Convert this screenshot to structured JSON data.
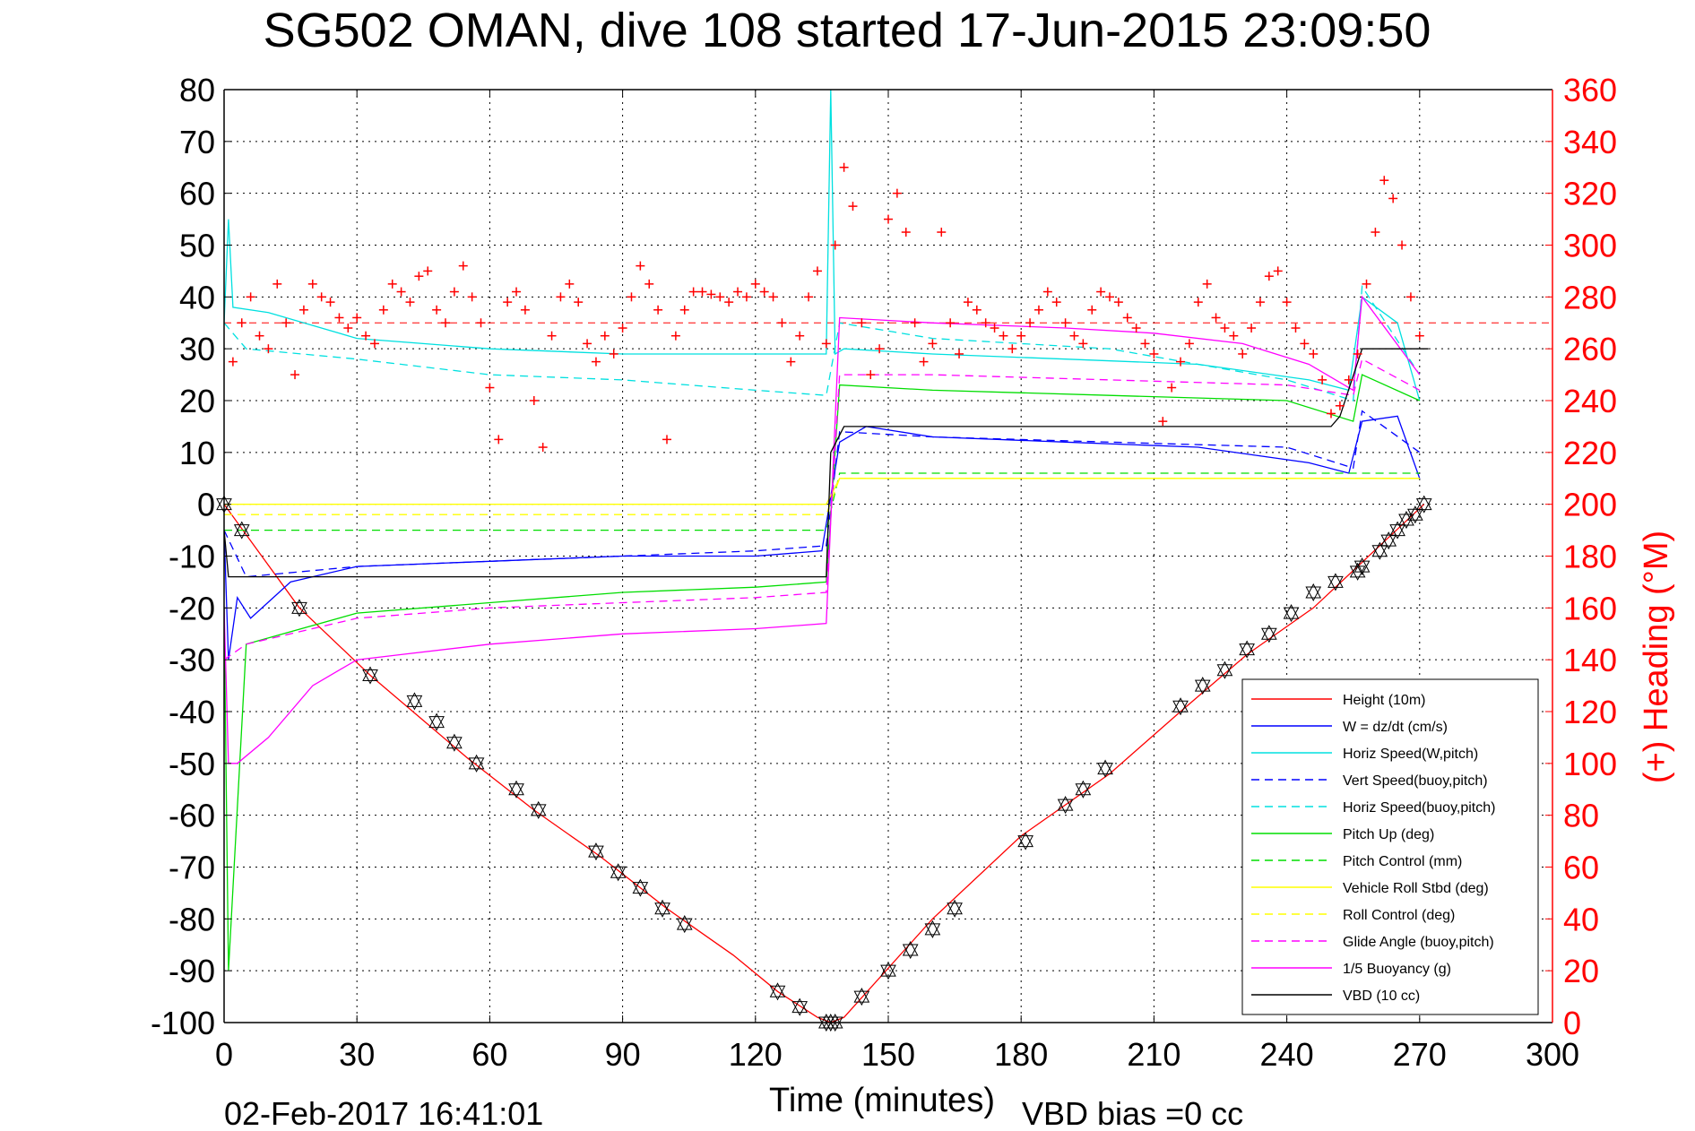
{
  "chart_data": {
    "type": "line",
    "title": "SG502 OMAN, dive 108 started 17-Jun-2015 23:09:50",
    "xlabel": "Time (minutes)",
    "ylabel_right": "(+) Heading (°M)",
    "footer_date": "02-Feb-2017 16:41:01",
    "footer_note": "VBD bias =0 cc",
    "xlim": [
      0,
      300
    ],
    "ylim": [
      -100,
      80
    ],
    "ylim_right": [
      0,
      360
    ],
    "x_ticks": [
      "0",
      "30",
      "60",
      "90",
      "120",
      "150",
      "180",
      "210",
      "240",
      "270",
      "300"
    ],
    "y_ticks": [
      "80",
      "70",
      "60",
      "50",
      "40",
      "30",
      "20",
      "10",
      "0",
      "-10",
      "-20",
      "-30",
      "-40",
      "-50",
      "-60",
      "-70",
      "-80",
      "-90",
      "-100"
    ],
    "y_ticks_right": [
      "360",
      "340",
      "320",
      "300",
      "280",
      "260",
      "240",
      "220",
      "200",
      "180",
      "160",
      "140",
      "120",
      "100",
      "80",
      "60",
      "40",
      "20",
      "0"
    ],
    "grid": true,
    "legend_position": "bottom-right",
    "series": [
      {
        "name": "Height (10m)",
        "color": "#ff0000",
        "dash": "solid",
        "x": [
          0,
          17,
          33,
          44,
          55,
          70,
          85,
          100,
          115,
          125,
          134,
          137,
          140,
          160,
          180,
          200,
          216,
          231,
          246,
          256,
          266,
          271
        ],
        "y": [
          0,
          -20,
          -33,
          -41,
          -49,
          -59,
          -68,
          -78,
          -87,
          -94,
          -99,
          -100,
          -99,
          -80,
          -64,
          -52,
          -40,
          -29,
          -20,
          -12,
          -4,
          0
        ]
      },
      {
        "name": "W = dz/dt (cm/s)",
        "color": "#0000ff",
        "dash": "solid",
        "x": [
          0,
          1,
          3,
          6,
          15,
          30,
          60,
          90,
          120,
          135,
          139,
          145,
          160,
          190,
          220,
          245,
          254,
          257,
          265,
          270
        ],
        "y": [
          -5,
          -30,
          -18,
          -22,
          -15,
          -12,
          -11,
          -10,
          -10,
          -9,
          12,
          15,
          13,
          12,
          11,
          8,
          6,
          16,
          17,
          5
        ]
      },
      {
        "name": "Horiz Speed(W,pitch)",
        "color": "#00e0e0",
        "dash": "solid",
        "x": [
          0,
          1,
          2,
          10,
          30,
          60,
          90,
          120,
          136,
          137,
          138,
          140,
          160,
          190,
          220,
          245,
          254,
          257,
          265,
          270
        ],
        "y": [
          35,
          55,
          38,
          37,
          32,
          30,
          29,
          29,
          29,
          80,
          29,
          30,
          29,
          28,
          27,
          24,
          22,
          40,
          35,
          20
        ]
      },
      {
        "name": "Vert Speed(buoy,pitch)",
        "color": "#0000ff",
        "dash": "dashed",
        "x": [
          0,
          5,
          30,
          60,
          90,
          120,
          136,
          139,
          160,
          200,
          240,
          255,
          257,
          270
        ],
        "y": [
          -5,
          -14,
          -12,
          -11,
          -10,
          -9,
          -8,
          14,
          13,
          12,
          11,
          7,
          18,
          10
        ]
      },
      {
        "name": "Horiz Speed(buoy,pitch)",
        "color": "#00e0e0",
        "dash": "dashed",
        "x": [
          0,
          5,
          30,
          60,
          90,
          120,
          136,
          139,
          160,
          200,
          240,
          255,
          257,
          270
        ],
        "y": [
          35,
          30,
          28,
          25,
          24,
          22,
          21,
          35,
          32,
          30,
          24,
          20,
          42,
          25
        ]
      },
      {
        "name": "Pitch Up (deg)",
        "color": "#00dd00",
        "dash": "solid",
        "x": [
          0,
          1,
          5,
          30,
          60,
          90,
          120,
          136,
          139,
          160,
          200,
          240,
          255,
          257,
          270
        ],
        "y": [
          -20,
          -90,
          -27,
          -21,
          -19,
          -17,
          -16,
          -15,
          23,
          22,
          21,
          20,
          16,
          25,
          20
        ]
      },
      {
        "name": "Pitch Control (mm)",
        "color": "#00dd00",
        "dash": "dashed",
        "x": [
          0,
          4,
          136,
          139,
          270
        ],
        "y": [
          -5,
          -5,
          -5,
          6,
          6
        ]
      },
      {
        "name": "Vehicle Roll Stbd (deg)",
        "color": "#ffff00",
        "dash": "solid",
        "x": [
          0,
          4,
          40,
          80,
          136,
          139,
          200,
          255,
          270
        ],
        "y": [
          0,
          0,
          0,
          0,
          0,
          5,
          5,
          5,
          5
        ]
      },
      {
        "name": "Roll Control (deg)",
        "color": "#ffff00",
        "dash": "dashed",
        "x": [
          0,
          4,
          136,
          139,
          270
        ],
        "y": [
          -2,
          -2,
          -2,
          5,
          5
        ]
      },
      {
        "name": "Glide Angle (buoy,pitch)",
        "color": "#ff00ff",
        "dash": "dashed",
        "x": [
          0,
          5,
          30,
          60,
          90,
          120,
          136,
          139,
          160,
          200,
          240,
          255,
          257,
          270
        ],
        "y": [
          -30,
          -27,
          -22,
          -20,
          -19,
          -18,
          -17,
          25,
          25,
          24,
          23,
          21,
          28,
          22
        ]
      },
      {
        "name": "1/5 Buoyancy (g)",
        "color": "#ff00ff",
        "dash": "solid",
        "x": [
          0,
          1,
          3,
          10,
          20,
          30,
          40,
          60,
          90,
          120,
          136,
          139,
          160,
          190,
          210,
          230,
          245,
          255,
          257,
          270
        ],
        "y": [
          -20,
          -50,
          -50,
          -45,
          -35,
          -30,
          -29,
          -27,
          -25,
          -24,
          -23,
          36,
          35,
          34,
          33,
          31,
          27,
          22,
          40,
          25
        ]
      },
      {
        "name": "VBD (10 cc)",
        "color": "#000000",
        "dash": "solid",
        "x": [
          0,
          1,
          4,
          136,
          137,
          140,
          250,
          252,
          257,
          272
        ],
        "y": [
          -5,
          -14,
          -14,
          -14,
          10,
          15,
          15,
          17,
          30,
          30
        ]
      }
    ],
    "heading_series": {
      "color": "#ff0000",
      "reference_heading": 270,
      "x": [
        2,
        4,
        6,
        8,
        10,
        12,
        14,
        16,
        18,
        20,
        22,
        24,
        26,
        28,
        30,
        32,
        34,
        36,
        38,
        40,
        42,
        44,
        46,
        48,
        50,
        52,
        54,
        56,
        58,
        60,
        62,
        64,
        66,
        68,
        70,
        72,
        74,
        76,
        78,
        80,
        82,
        84,
        86,
        88,
        90,
        92,
        94,
        96,
        98,
        100,
        102,
        104,
        106,
        108,
        110,
        112,
        114,
        116,
        118,
        120,
        122,
        124,
        126,
        128,
        130,
        132,
        134,
        136,
        138,
        140,
        142,
        144,
        146,
        148,
        150,
        152,
        154,
        156,
        158,
        160,
        162,
        164,
        166,
        168,
        170,
        172,
        174,
        176,
        178,
        180,
        182,
        184,
        186,
        188,
        190,
        192,
        194,
        196,
        198,
        200,
        202,
        204,
        206,
        208,
        210,
        212,
        214,
        216,
        218,
        220,
        222,
        224,
        226,
        228,
        230,
        232,
        234,
        236,
        238,
        240,
        242,
        244,
        246,
        248,
        250,
        252,
        254,
        256,
        258,
        260,
        262,
        264,
        266,
        268,
        270
      ],
      "y": [
        255,
        270,
        280,
        265,
        260,
        285,
        270,
        250,
        275,
        285,
        280,
        278,
        272,
        268,
        272,
        265,
        262,
        275,
        285,
        282,
        278,
        288,
        290,
        275,
        270,
        282,
        292,
        280,
        270,
        245,
        225,
        278,
        282,
        275,
        240,
        222,
        265,
        280,
        285,
        278,
        262,
        255,
        265,
        258,
        268,
        280,
        292,
        285,
        275,
        225,
        265,
        275,
        282,
        282,
        281,
        280,
        278,
        282,
        280,
        285,
        282,
        280,
        270,
        255,
        265,
        280,
        290,
        262,
        300,
        330,
        315,
        270,
        250,
        260,
        310,
        320,
        305,
        270,
        255,
        262,
        305,
        270,
        258,
        278,
        275,
        270,
        268,
        265,
        260,
        265,
        270,
        275,
        282,
        278,
        270,
        265,
        262,
        275,
        282,
        280,
        278,
        272,
        268,
        262,
        258,
        232,
        245,
        255,
        262,
        278,
        285,
        272,
        268,
        265,
        258,
        268,
        278,
        288,
        290,
        278,
        268,
        262,
        258,
        248,
        235,
        238,
        248,
        258,
        285,
        305,
        325,
        318,
        300,
        280,
        265
      ]
    },
    "markers": {
      "symbol": "triangle",
      "color": "#000000",
      "x": [
        0,
        4,
        17,
        33,
        43,
        48,
        52,
        57,
        66,
        71,
        84,
        89,
        94,
        99,
        104,
        125,
        130,
        136,
        137,
        138,
        144,
        150,
        155,
        160,
        165,
        181,
        190,
        194,
        199,
        216,
        221,
        226,
        231,
        236,
        241,
        246,
        251,
        256,
        257,
        261,
        263,
        265,
        267,
        269,
        271
      ],
      "y": [
        0,
        -5,
        -20,
        -33,
        -38,
        -42,
        -46,
        -50,
        -55,
        -59,
        -67,
        -71,
        -74,
        -78,
        -81,
        -94,
        -97,
        -100,
        -100,
        -100,
        -95,
        -90,
        -86,
        -82,
        -78,
        -65,
        -58,
        -55,
        -51,
        -39,
        -35,
        -32,
        -28,
        -25,
        -21,
        -17,
        -15,
        -13,
        -12,
        -9,
        -7,
        -5,
        -3,
        -2,
        0
      ]
    }
  }
}
